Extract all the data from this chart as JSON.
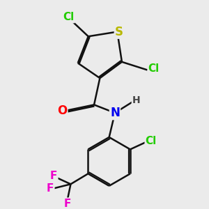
{
  "bg_color": "#ebebeb",
  "atom_colors": {
    "Cl": "#22cc00",
    "S": "#b8b800",
    "O": "#ff0000",
    "N": "#0000ee",
    "H": "#444444",
    "F": "#ee00cc",
    "C": "#000000"
  },
  "bond_color": "#111111",
  "bond_lw": 1.8,
  "font_size": 11
}
